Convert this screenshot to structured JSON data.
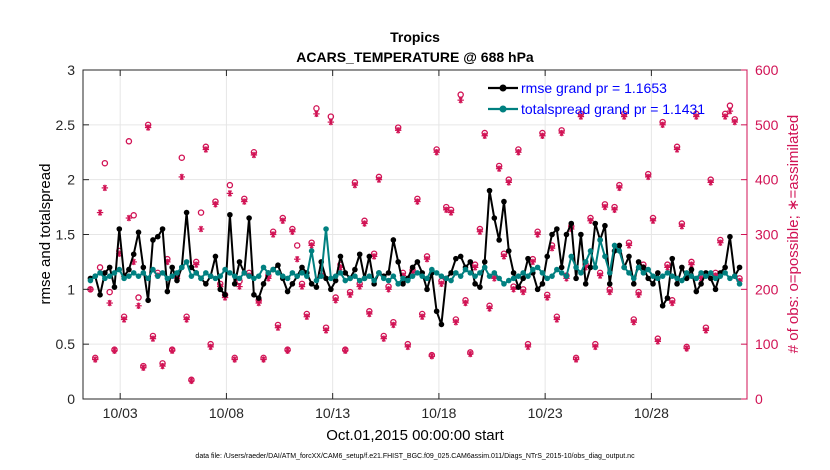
{
  "chart_data": {
    "type": "line",
    "title": "Tropics",
    "subtitle": "ACARS_TEMPERATURE @ 688 hPa",
    "xlabel": "Oct.01,2015 00:00:00 start",
    "ylabel": "rmse and totalspread",
    "y2label": "# of obs: o=possible; ∗=assimilated",
    "footnote": "data file: /Users/raeder/DAI/ATM_forcXX/CAM6_setup/f.e21.FHIST_BGC.f09_025.CAM6assim.011/Diags_NTrS_2015-10/obs_diag_output.nc",
    "xlim": [
      1.25,
      32.5
    ],
    "ylim": [
      0,
      3
    ],
    "y2lim": [
      0,
      600
    ],
    "xticks": [
      3,
      8,
      13,
      18,
      23,
      28
    ],
    "xticklabels": [
      "10/03",
      "10/08",
      "10/13",
      "10/18",
      "10/23",
      "10/28"
    ],
    "yticks": [
      0,
      0.5,
      1,
      1.5,
      2,
      2.5,
      3
    ],
    "yticklabels": [
      "0",
      "0.5",
      "1",
      "1.5",
      "2",
      "2.5",
      "3"
    ],
    "y2ticks": [
      0,
      100,
      200,
      300,
      400,
      500,
      600
    ],
    "y2ticklabels": [
      "0",
      "100",
      "200",
      "300",
      "400",
      "500",
      "600"
    ],
    "grid": true,
    "legend_position": "top-right",
    "colors": {
      "rmse": "#000000",
      "spread": "#008080",
      "obs": "#d11254",
      "axis": "#262626"
    },
    "series": [
      {
        "name": "rmse grand pr = 1.1653",
        "axis": "left",
        "marker": "filled-circle",
        "values": [
          1.1,
          1.12,
          0.95,
          1.15,
          1.2,
          1.02,
          1.55,
          1.12,
          1.18,
          1.32,
          1.52,
          1.2,
          0.9,
          1.45,
          1.48,
          1.55,
          0.98,
          1.2,
          1.08,
          1.2,
          1.7,
          1.2,
          1.15,
          1.1,
          1.05,
          1.12,
          1.3,
          1.0,
          0.95,
          1.68,
          1.05,
          1.25,
          1.15,
          1.65,
          0.95,
          0.92,
          1.05,
          1.15,
          1.18,
          1.22,
          1.1,
          0.98,
          1.05,
          1.12,
          1.2,
          1.15,
          1.05,
          1.02,
          1.25,
          1.1,
          1.0,
          1.08,
          1.3,
          1.15,
          1.1,
          1.18,
          1.32,
          1.1,
          1.3,
          1.05,
          1.15,
          1.12,
          1.15,
          1.45,
          1.25,
          1.05,
          1.1,
          1.2,
          1.25,
          1.15,
          1.0,
          1.15,
          0.8,
          0.68,
          1.1,
          1.15,
          1.28,
          1.3,
          1.2,
          1.25,
          1.05,
          1.02,
          1.25,
          1.9,
          1.65,
          1.45,
          1.8,
          1.35,
          1.15,
          1.02,
          1.1,
          1.28,
          1.15,
          1.0,
          1.05,
          1.3,
          1.5,
          1.55,
          1.2,
          1.5,
          1.6,
          1.1,
          1.5,
          1.05,
          1.2,
          1.6,
          1.45,
          1.58,
          1.05,
          1.35,
          1.4,
          1.2,
          1.3,
          1.05,
          1.25,
          1.2,
          1.1,
          1.05,
          1.15,
          0.85,
          0.92,
          1.28,
          1.05,
          1.2,
          1.1,
          1.18,
          0.98,
          1.05,
          1.15,
          1.1,
          1.0,
          1.15,
          1.2,
          1.48,
          1.12,
          1.2
        ]
      },
      {
        "name": "totalspread grand pr = 1.1431",
        "axis": "left",
        "marker": "filled-circle",
        "values": [
          1.08,
          1.12,
          1.15,
          1.1,
          1.12,
          1.15,
          1.18,
          1.1,
          1.12,
          1.15,
          1.12,
          1.15,
          1.1,
          1.18,
          1.12,
          1.15,
          1.1,
          1.12,
          1.15,
          1.2,
          1.25,
          1.12,
          1.15,
          1.1,
          1.15,
          1.12,
          1.1,
          1.12,
          1.18,
          1.15,
          1.12,
          1.1,
          1.15,
          1.12,
          1.1,
          1.12,
          1.2,
          1.15,
          1.18,
          1.15,
          1.12,
          1.1,
          1.15,
          1.12,
          1.15,
          1.12,
          1.35,
          1.08,
          1.12,
          1.55,
          1.1,
          1.12,
          1.15,
          1.08,
          1.1,
          1.12,
          1.08,
          1.1,
          1.12,
          1.08,
          1.15,
          1.1,
          1.08,
          1.12,
          1.05,
          1.1,
          1.08,
          1.12,
          1.15,
          1.12,
          1.1,
          1.18,
          1.15,
          1.12,
          1.1,
          1.08,
          1.15,
          1.12,
          1.18,
          1.15,
          1.12,
          1.15,
          1.2,
          1.12,
          1.15,
          1.1,
          1.05,
          1.08,
          1.1,
          1.12,
          1.15,
          1.12,
          1.18,
          1.2,
          1.15,
          1.1,
          1.12,
          1.18,
          1.15,
          1.12,
          1.3,
          1.2,
          1.15,
          1.25,
          1.35,
          1.2,
          1.45,
          1.3,
          1.15,
          1.4,
          1.35,
          1.2,
          1.15,
          1.1,
          1.2,
          1.15,
          1.18,
          1.12,
          1.1,
          1.12,
          1.15,
          1.12,
          1.1,
          1.08,
          1.15,
          1.12,
          1.1,
          1.15,
          1.12,
          1.15,
          1.1,
          1.12,
          1.15,
          1.1,
          1.12,
          1.05
        ]
      },
      {
        "name": "obs possible",
        "axis": "right",
        "marker": "open-circle",
        "values": [
          200,
          75,
          240,
          430,
          195,
          90,
          270,
          150,
          470,
          335,
          185,
          60,
          500,
          115,
          230,
          65,
          255,
          90,
          225,
          440,
          150,
          35,
          250,
          340,
          460,
          100,
          360,
          210,
          190,
          390,
          75,
          215,
          365,
          230,
          450,
          180,
          75,
          225,
          305,
          135,
          330,
          90,
          310,
          280,
          210,
          155,
          285,
          530,
          230,
          130,
          515,
          185,
          245,
          90,
          195,
          395,
          210,
          325,
          160,
          265,
          405,
          115,
          205,
          140,
          495,
          230,
          100,
          235,
          365,
          155,
          260,
          80,
          455,
          215,
          350,
          345,
          145,
          555,
          180,
          85,
          245,
          310,
          485,
          170,
          225,
          425,
          265,
          400,
          205,
          455,
          200,
          100,
          255,
          305,
          485,
          190,
          280,
          150,
          490,
          225,
          315,
          75,
          520,
          245,
          330,
          100,
          230,
          355,
          200,
          350,
          390,
          520,
          285,
          145,
          195,
          245,
          410,
          330,
          110,
          505,
          245,
          180,
          460,
          320,
          95,
          250,
          520,
          225,
          130,
          400,
          230,
          290,
          520,
          535,
          510,
          220
        ]
      },
      {
        "name": "obs assimilated",
        "axis": "right",
        "marker": "asterisk",
        "values": [
          200,
          72,
          340,
          385,
          175,
          88,
          265,
          145,
          330,
          250,
          170,
          57,
          495,
          110,
          225,
          60,
          250,
          88,
          220,
          405,
          145,
          33,
          245,
          310,
          455,
          95,
          355,
          205,
          185,
          375,
          72,
          205,
          360,
          225,
          445,
          175,
          72,
          220,
          300,
          130,
          325,
          88,
          305,
          255,
          205,
          150,
          280,
          520,
          225,
          125,
          505,
          180,
          240,
          88,
          190,
          390,
          205,
          320,
          155,
          260,
          400,
          110,
          200,
          135,
          490,
          225,
          95,
          230,
          360,
          150,
          255,
          78,
          450,
          210,
          345,
          340,
          140,
          545,
          175,
          82,
          240,
          305,
          480,
          165,
          220,
          420,
          260,
          395,
          200,
          450,
          195,
          95,
          250,
          300,
          480,
          185,
          275,
          145,
          485,
          220,
          310,
          72,
          515,
          240,
          325,
          95,
          225,
          350,
          195,
          345,
          385,
          515,
          280,
          140,
          190,
          240,
          405,
          325,
          105,
          500,
          240,
          175,
          455,
          315,
          92,
          245,
          515,
          220,
          125,
          395,
          225,
          285,
          515,
          525,
          505,
          215
        ]
      }
    ]
  }
}
